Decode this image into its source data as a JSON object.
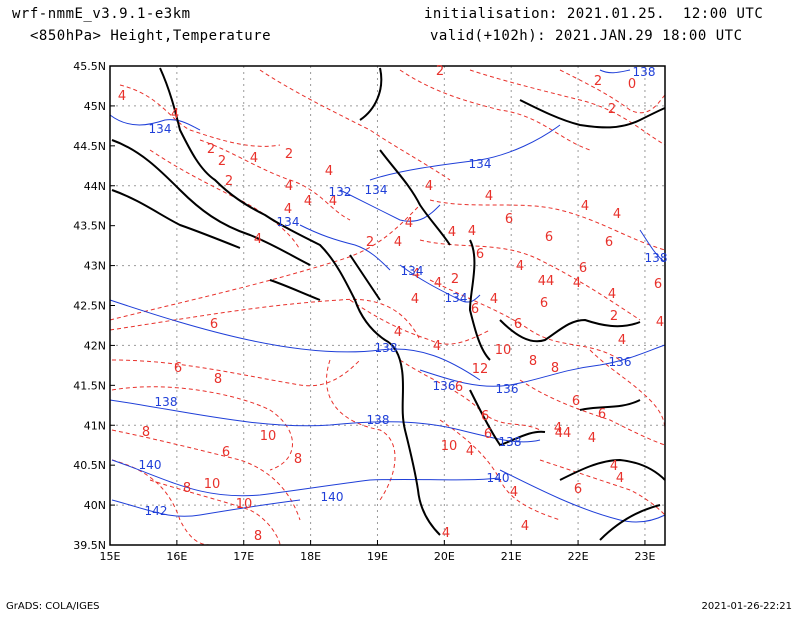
{
  "header": {
    "model": "wrf-nmmE_v3.9.1-e3km",
    "field": "<850hPa> Height,Temperature",
    "init": "initialisation: 2021.01.25.  12:00 UTC",
    "valid": "valid(+102h): 2021.JAN.29 18:00 UTC"
  },
  "axes": {
    "lat_labels": [
      "45.5N",
      "45N",
      "44.5N",
      "44N",
      "43.5N",
      "43N",
      "42.5N",
      "42N",
      "41.5N",
      "41N",
      "40.5N",
      "40N",
      "39.5N"
    ],
    "lon_labels": [
      "15E",
      "16E",
      "17E",
      "18E",
      "19E",
      "20E",
      "21E",
      "22E",
      "23E"
    ]
  },
  "colors": {
    "temperature_contour": "#e8312b",
    "height_contour": "#1f3fd8",
    "coastline": "#000000",
    "grid": "#9a9a9a"
  },
  "map": {
    "region": "Western Balkans / Adriatic",
    "lon_range": [
      15,
      23.3
    ],
    "lat_range": [
      39.5,
      45.5
    ],
    "temperature_labels": [
      "2",
      "2",
      "2",
      "0",
      "4",
      "4",
      "2",
      "2",
      "4",
      "2",
      "2",
      "4",
      "4",
      "4",
      "4",
      "4",
      "4",
      "4",
      "4",
      "6",
      "4",
      "4",
      "2",
      "4",
      "4",
      "2",
      "6",
      "4",
      "4",
      "4",
      "4",
      "6",
      "4",
      "6",
      "4",
      "6",
      "6",
      "4",
      "2",
      "6",
      "4",
      "4",
      "4",
      "44",
      "4",
      "6",
      "6",
      "8",
      "8",
      "6",
      "8",
      "8",
      "10",
      "10",
      "10",
      "8",
      "6",
      "6",
      "4",
      "4",
      "6",
      "10",
      "12",
      "10",
      "8",
      "8",
      "4",
      "6",
      "6",
      "4",
      "4",
      "6",
      "6",
      "4",
      "4",
      "4",
      "44",
      "6",
      "4",
      "4"
    ],
    "height_labels": [
      "134",
      "134",
      "132",
      "134",
      "134",
      "134",
      "134",
      "138",
      "136",
      "136",
      "136",
      "138",
      "138",
      "138",
      "138",
      "138",
      "140",
      "140",
      "140",
      "142"
    ]
  },
  "footer": {
    "left": "GrADS: COLA/IGES",
    "right": "2021-01-26-22:21"
  }
}
